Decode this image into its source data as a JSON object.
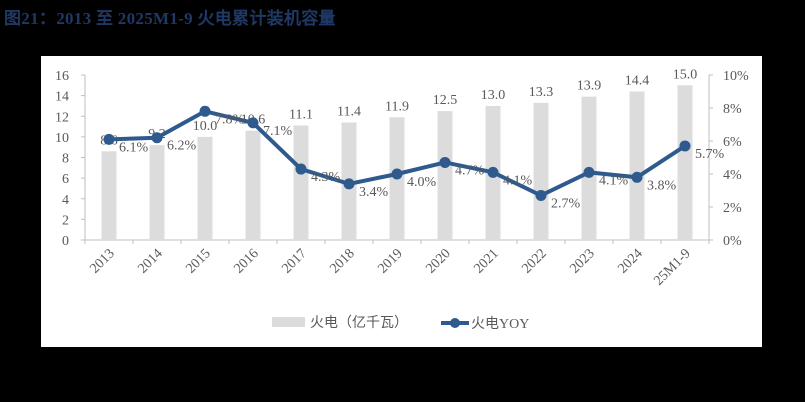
{
  "title": "图21：2013 至 2025M1-9 火电累计装机容量",
  "colors": {
    "bar": "#dcdcdc",
    "line": "#2e5a8e",
    "title": "#1f3864",
    "axis": "#bfbfbf",
    "text": "#595959"
  },
  "legend": {
    "bar_label": "火电（亿千瓦）",
    "line_label": "火电YOY"
  },
  "chart_data": {
    "type": "bar+line",
    "title": "2013 至 2025M1-9 火电累计装机容量",
    "categories": [
      "2013",
      "2014",
      "2015",
      "2016",
      "2017",
      "2018",
      "2019",
      "2020",
      "2021",
      "2022",
      "2023",
      "2024",
      "25M1-9"
    ],
    "series": [
      {
        "name": "火电（亿千瓦）",
        "type": "bar",
        "axis": "left",
        "values": [
          8.6,
          9.2,
          10.0,
          10.6,
          11.1,
          11.4,
          11.9,
          12.5,
          13.0,
          13.3,
          13.9,
          14.4,
          15.0
        ]
      },
      {
        "name": "火电YOY",
        "type": "line",
        "axis": "right",
        "unit": "%",
        "values": [
          6.1,
          6.2,
          7.8,
          7.1,
          4.3,
          3.4,
          4.0,
          4.7,
          4.1,
          2.7,
          4.1,
          3.8,
          5.7
        ]
      }
    ],
    "y_left": {
      "min": 0,
      "max": 16,
      "ticks": [
        0,
        2,
        4,
        6,
        8,
        10,
        12,
        14,
        16
      ]
    },
    "y_right": {
      "min": 0,
      "max": 10,
      "ticks": [
        "0%",
        "2%",
        "4%",
        "6%",
        "8%",
        "10%"
      ]
    },
    "grid": false,
    "legend_position": "bottom"
  }
}
